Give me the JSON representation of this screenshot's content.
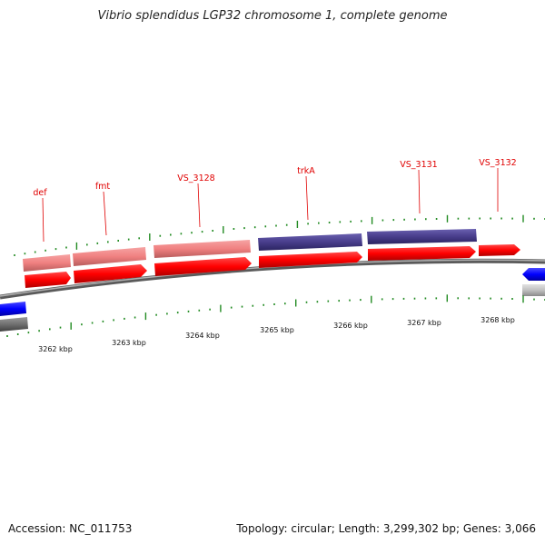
{
  "header": {
    "title": "Vibrio splendidus LGP32 chromosome 1, complete genome"
  },
  "footer": {
    "accession": "Accession: NC_011753",
    "summary": "Topology: circular; Length: 3,299,302 bp; Genes: 3,066"
  },
  "colors": {
    "gene_red": "#ff0000",
    "gene_pink": "#f08080",
    "gene_navy": "#483d8b",
    "gene_blue": "#0000ff",
    "gene_gray": "#c0c0c0",
    "backbone": "#808080",
    "tick_green": "#228b22",
    "label_red": "#e00000"
  },
  "gene_labels": [
    {
      "name": "def"
    },
    {
      "name": "fmt"
    },
    {
      "name": "VS_3128"
    },
    {
      "name": "trkA"
    },
    {
      "name": "VS_3131"
    },
    {
      "name": "VS_3132"
    }
  ],
  "kbp_labels": [
    "3262 kbp",
    "3263 kbp",
    "3264 kbp",
    "3265 kbp",
    "3266 kbp",
    "3267 kbp",
    "3268 kbp"
  ]
}
